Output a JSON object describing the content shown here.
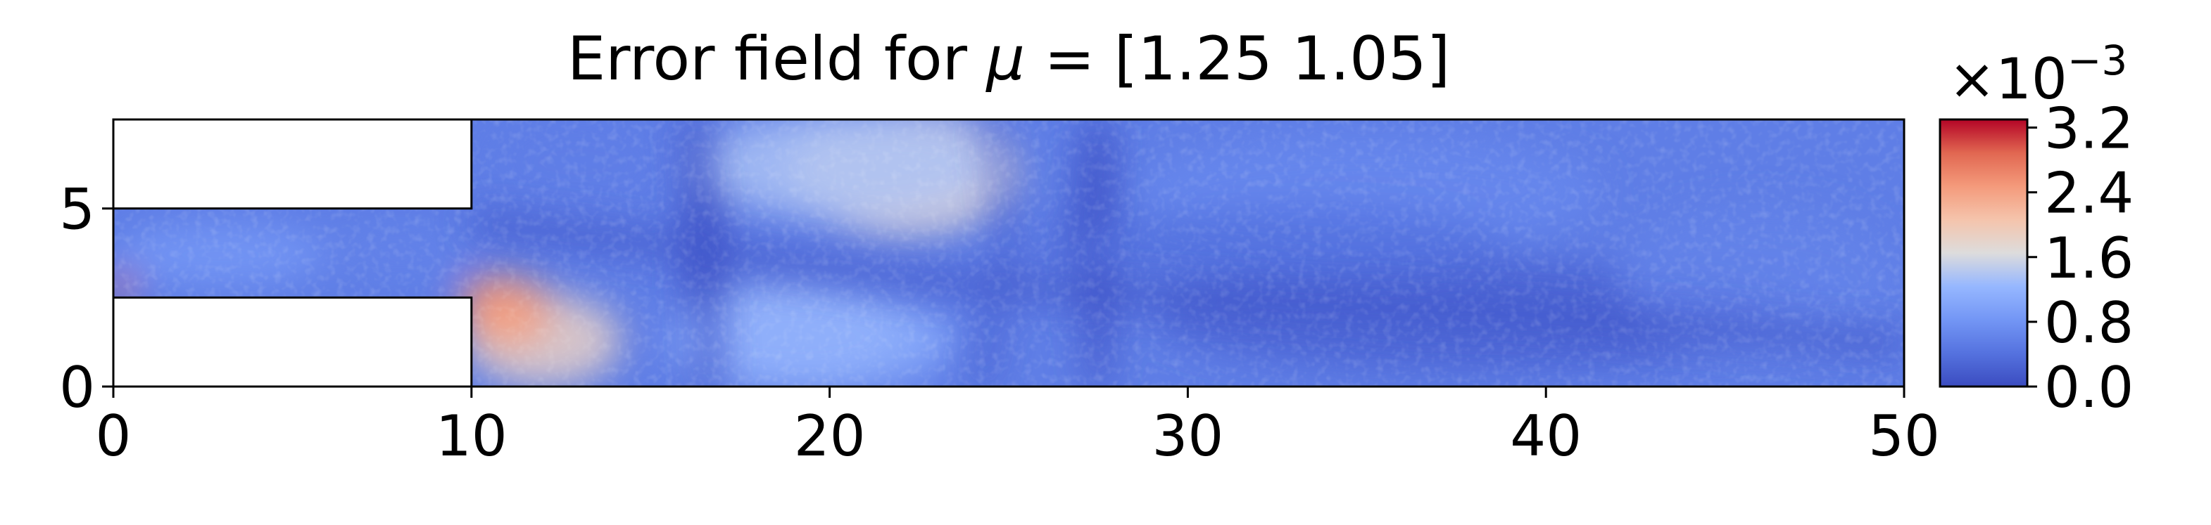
{
  "chart_data": {
    "type": "heatmap",
    "title_prefix": "Error field for ",
    "title_symbol": "μ",
    "title_suffix": " = [1.25 1.05]",
    "xlim": [
      0,
      50
    ],
    "ylim": [
      0,
      7.5
    ],
    "xticks": [
      "0",
      "10",
      "20",
      "30",
      "40",
      "50"
    ],
    "yticks": [
      "0",
      "5"
    ],
    "colorbar": {
      "colormap": "coolwarm",
      "range": [
        0.0,
        3.3
      ],
      "ticks": [
        "0.0",
        "0.8",
        "1.6",
        "2.4",
        "3.2"
      ],
      "multiplier_base": "×10",
      "multiplier_exp": "−3"
    },
    "domain_cutouts": [
      {
        "x": [
          0,
          10
        ],
        "y": [
          5,
          7.5
        ]
      },
      {
        "x": [
          0,
          10
        ],
        "y": [
          0,
          2.5
        ]
      }
    ],
    "field_features": [
      {
        "x": 22,
        "y": 6.0,
        "value": 1.75
      },
      {
        "x": 19,
        "y": 1.5,
        "value": 1.4
      },
      {
        "x": 10.6,
        "y": 2.3,
        "value": 2.9
      },
      {
        "x": 0.2,
        "y": 2.8,
        "value": 2.9
      },
      {
        "x": 35,
        "y": 5.5,
        "value": 0.65
      },
      {
        "x": 27.5,
        "y": 3.5,
        "value": 0.15
      },
      {
        "x": 16.5,
        "y": 3.5,
        "value": 0.15
      }
    ]
  }
}
